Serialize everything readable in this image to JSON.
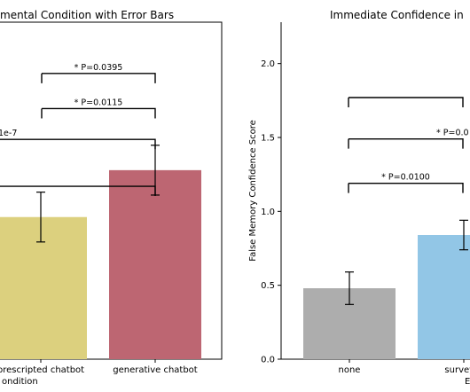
{
  "chart_data": [
    {
      "type": "bar",
      "title": "mental Condition with Error Bars",
      "xlabel": "ondition",
      "ylabel": "",
      "categories": [
        "prescripted chatbot",
        "generative chatbot"
      ],
      "values": [
        0.97,
        1.29
      ],
      "errors": [
        0.17,
        0.17
      ],
      "colors": [
        "#dcd07e",
        "#bd6672"
      ],
      "ylim": [
        0,
        2.3
      ],
      "brackets": [
        {
          "label": "* P=0.0395",
          "level": 1.95
        },
        {
          "label": "* P=0.0115",
          "level": 1.71
        },
        {
          "label": "1e-7",
          "level": 1.5
        },
        {
          "label": "",
          "level": 1.18
        }
      ]
    },
    {
      "type": "bar",
      "title": "Immediate Confidence in",
      "xlabel": "E",
      "ylabel": "False Memory Confidence Score",
      "categories": [
        "none",
        "survey b"
      ],
      "values": [
        0.48,
        0.84
      ],
      "errors": [
        0.11,
        0.1
      ],
      "colors": [
        "#adadad",
        "#92c6e6"
      ],
      "ylim": [
        0,
        2.28
      ],
      "yticks": [
        "0.0",
        "0.5",
        "1.0",
        "1.5",
        "2.0"
      ],
      "brackets": [
        {
          "label": "",
          "level": 1.77
        },
        {
          "label": "* P=0.0",
          "level": 1.49
        },
        {
          "label": "* P=0.0100",
          "level": 1.19
        }
      ]
    }
  ]
}
